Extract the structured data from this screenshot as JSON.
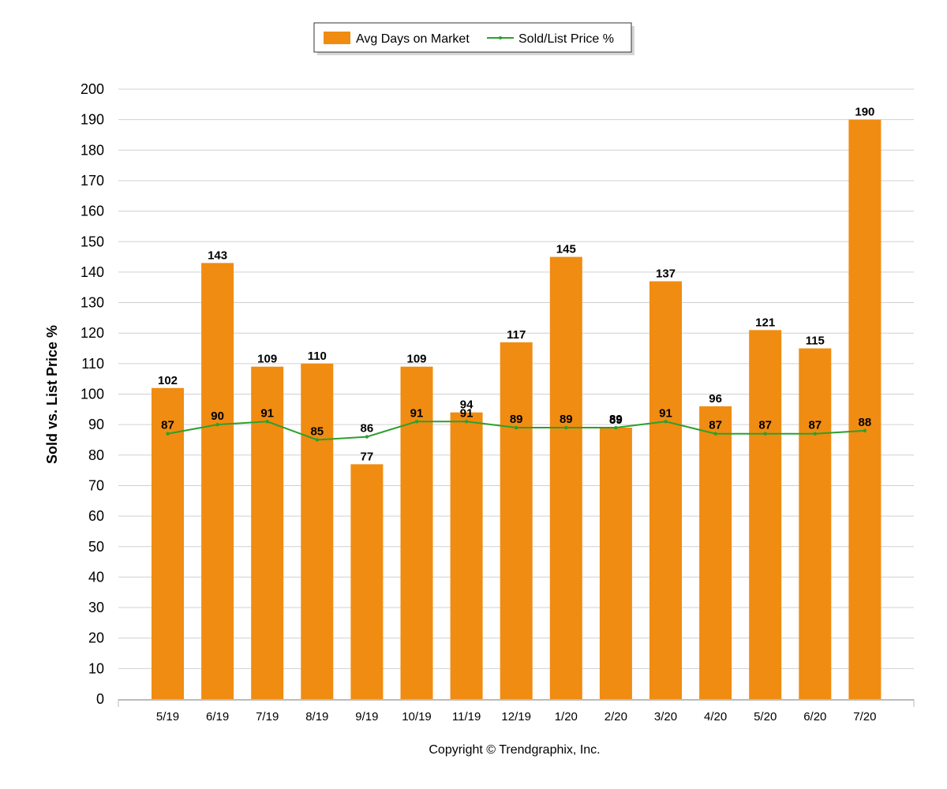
{
  "chart_data": {
    "type": "bar",
    "categories": [
      "5/19",
      "6/19",
      "7/19",
      "8/19",
      "9/19",
      "10/19",
      "11/19",
      "12/19",
      "1/20",
      "2/20",
      "3/20",
      "4/20",
      "5/20",
      "6/20",
      "7/20"
    ],
    "series": [
      {
        "name": "Avg Days on Market",
        "type": "bar",
        "values": [
          102,
          143,
          109,
          110,
          77,
          109,
          94,
          117,
          145,
          89,
          137,
          96,
          121,
          115,
          190
        ],
        "color": "#f08c12"
      },
      {
        "name": "Sold/List Price %",
        "type": "line",
        "values": [
          87,
          90,
          91,
          85,
          86,
          91,
          91,
          89,
          89,
          89,
          91,
          87,
          87,
          87,
          88
        ],
        "color": "#2ca02c"
      }
    ],
    "ylabel": "Sold vs. List Price %",
    "ylim": [
      0,
      200
    ],
    "yticks": [
      0,
      10,
      20,
      30,
      40,
      50,
      60,
      70,
      80,
      90,
      100,
      110,
      120,
      130,
      140,
      150,
      160,
      170,
      180,
      190,
      200
    ],
    "grid": true,
    "legend_position": "top-center"
  },
  "footer": {
    "copyright": "Copyright © Trendgraphix, Inc."
  },
  "colors": {
    "bar": "#f08c12",
    "line": "#2ca02c",
    "grid": "#d0d0d0"
  }
}
